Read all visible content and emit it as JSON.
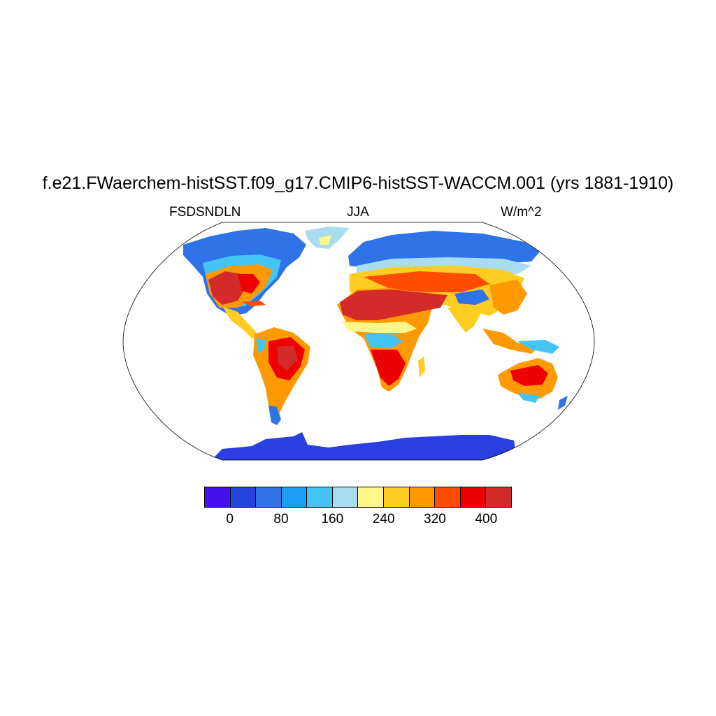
{
  "map": {
    "title": "f.e21.FWaerchem-histSST.f09_g17.CMIP6-histSST-WACCM.001 (yrs 1881-1910)",
    "variable": "FSDSNDLN",
    "season": "JJA",
    "units": "W/m^2",
    "projection": "Robinson (world map)",
    "colors": {
      "ocean": "#ffffff",
      "outline": "#000000",
      "antarctica": "#2a3fe0"
    }
  },
  "colorbar": {
    "colors": [
      "#4411ee",
      "#2244dd",
      "#2e73e8",
      "#19a0f5",
      "#44c4f5",
      "#a8dcf0",
      "#fff68a",
      "#ffcc22",
      "#ff9900",
      "#ff4d00",
      "#ee0000",
      "#d42a2a"
    ],
    "labels": [
      {
        "text": "0",
        "after_box": 1
      },
      {
        "text": "80",
        "after_box": 3
      },
      {
        "text": "160",
        "after_box": 5
      },
      {
        "text": "240",
        "after_box": 7
      },
      {
        "text": "320",
        "after_box": 9
      },
      {
        "text": "400",
        "after_box": 11
      }
    ]
  }
}
